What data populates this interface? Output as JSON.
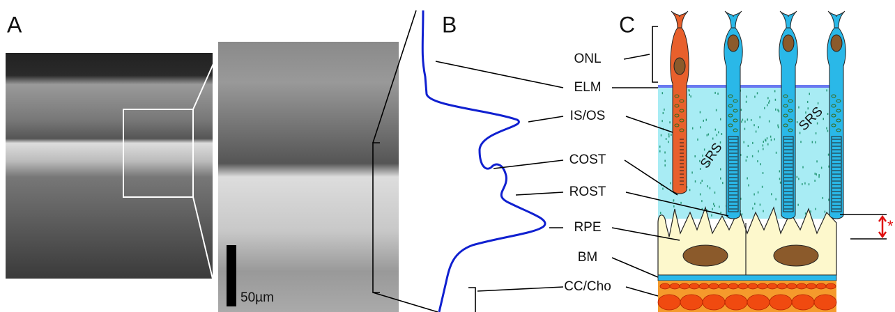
{
  "panels": {
    "a": {
      "label": "A",
      "scale_bar": "50µm"
    },
    "b": {
      "label": "B",
      "layers": [
        "ONL",
        "ELM",
        "IS/OS",
        "COST",
        "ROST",
        "RPE",
        "BM",
        "CC/Cho"
      ]
    },
    "c": {
      "label": "C",
      "srs_labels": [
        "SRS",
        "SRS"
      ],
      "asterisk": "*"
    }
  }
}
